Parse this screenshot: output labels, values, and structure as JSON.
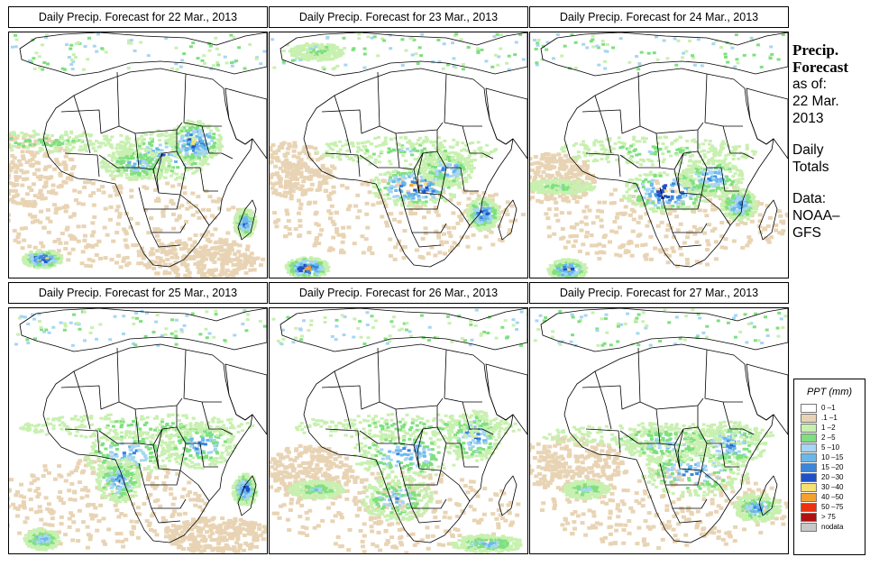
{
  "panels": [
    {
      "title": "Daily Precip. Forecast for  22 Mar., 2013",
      "variant": 0
    },
    {
      "title": "Daily Precip. Forecast for  23 Mar., 2013",
      "variant": 1
    },
    {
      "title": "Daily Precip. Forecast for  24 Mar., 2013",
      "variant": 2
    },
    {
      "title": "Daily Precip. Forecast for  25 Mar., 2013",
      "variant": 3
    },
    {
      "title": "Daily Precip. Forecast for  26 Mar., 2013",
      "variant": 4
    },
    {
      "title": "Daily Precip. Forecast for  27 Mar., 2013",
      "variant": 5
    }
  ],
  "side": {
    "title_line1": "Precip.",
    "title_line2": "Forecast",
    "asof_1": "as of:",
    "asof_2": "22 Mar.",
    "asof_3": "2013",
    "daily_1": "Daily",
    "daily_2": "Totals",
    "data_1": "Data:",
    "data_2": "NOAA–",
    "data_3": "GFS"
  },
  "legend": {
    "title": "PPT (mm)",
    "items": [
      {
        "label": "0 –1",
        "color": "#ffffff"
      },
      {
        "label": ".1 –1",
        "color": "#e8d4b4"
      },
      {
        "label": "1 –2",
        "color": "#c8f0b0"
      },
      {
        "label": "2 –5",
        "color": "#7ee07e"
      },
      {
        "label": "5 –10",
        "color": "#a6d6f2"
      },
      {
        "label": "10 –15",
        "color": "#6ab8ea"
      },
      {
        "label": "15 –20",
        "color": "#3a86dc"
      },
      {
        "label": "20 –30",
        "color": "#2050c8"
      },
      {
        "label": "30 –40",
        "color": "#f6e070"
      },
      {
        "label": "40 –50",
        "color": "#f6a030"
      },
      {
        "label": "50 –75",
        "color": "#ec3010"
      },
      {
        "label": "> 75",
        "color": "#b01010"
      },
      {
        "label": "nodata",
        "color": "#c8c8c8"
      }
    ]
  }
}
